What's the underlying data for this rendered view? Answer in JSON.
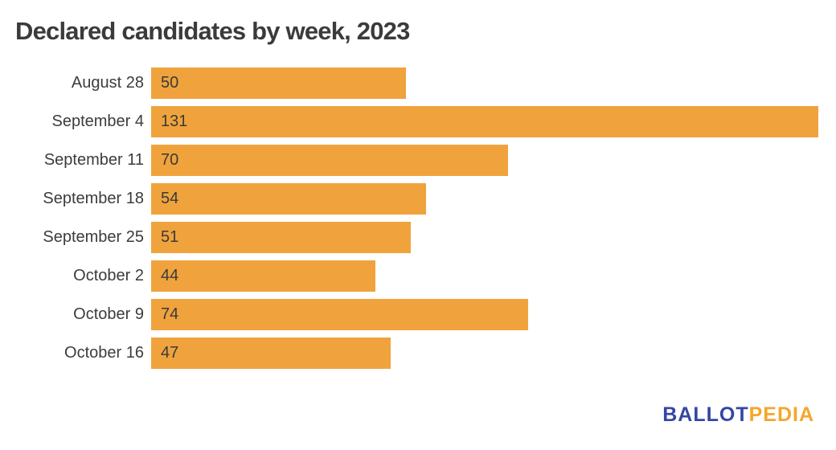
{
  "title": "Declared candidates by week, 2023",
  "chart_data": {
    "type": "bar",
    "orientation": "horizontal",
    "title": "Declared candidates by week, 2023",
    "categories": [
      "August 28",
      "September 4",
      "September 11",
      "September 18",
      "September 25",
      "October 2",
      "October 9",
      "October 16"
    ],
    "values": [
      50,
      131,
      70,
      54,
      51,
      44,
      74,
      47
    ],
    "xlabel": "",
    "ylabel": "",
    "xlim": [
      0,
      131
    ],
    "grid": false,
    "legend": "none",
    "value_labels": "inside-left",
    "bar_color": "#f0a33c"
  },
  "branding": {
    "logo_part1": "BALLOT",
    "logo_part2": "PEDIA",
    "logo_blue": "#3446a5",
    "logo_orange": "#f5a62b"
  },
  "colors": {
    "background": "#ffffff",
    "bar": "#f0a33c",
    "title_text": "#3b3b3b",
    "label_text": "#3c3c3c"
  }
}
